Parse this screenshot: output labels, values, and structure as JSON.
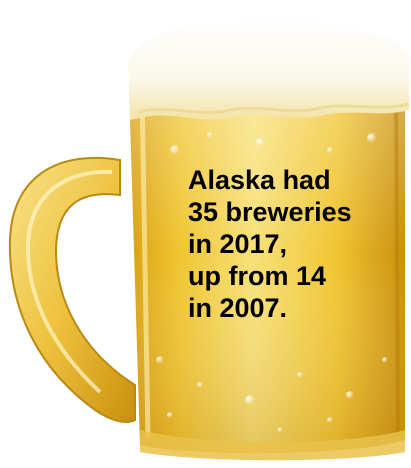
{
  "image": {
    "subject": "beer-mug-icon",
    "colors": {
      "background": "#ffffff",
      "beer_light": "#f7e17a",
      "beer_mid": "#f0c531",
      "beer_deep": "#d9a012",
      "foam": "#fbf7ea",
      "glass_handle": "#f2cf4a",
      "text": "#000000"
    }
  },
  "caption": {
    "lines": [
      "Alaska had",
      "35 breweries",
      "in 2017,",
      "up from 14",
      "in 2007."
    ]
  }
}
